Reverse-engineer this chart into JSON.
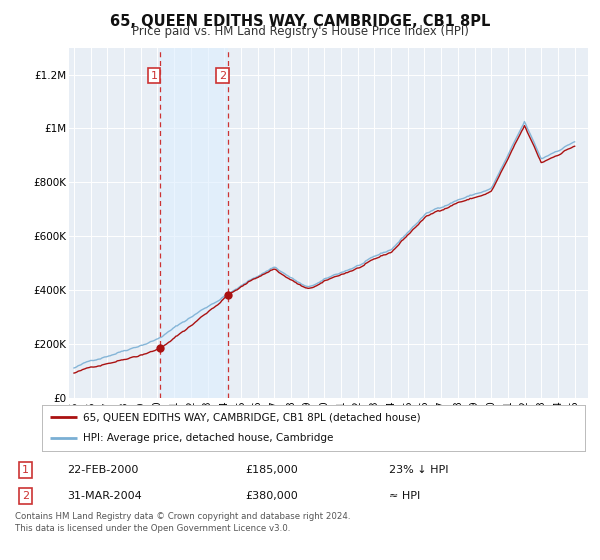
{
  "title": "65, QUEEN EDITHS WAY, CAMBRIDGE, CB1 8PL",
  "subtitle": "Price paid vs. HM Land Registry's House Price Index (HPI)",
  "title_fontsize": 10.5,
  "subtitle_fontsize": 8.5,
  "bg_color": "#ffffff",
  "plot_bg_color": "#e8eef5",
  "grid_color": "#ffffff",
  "hpi_color": "#7aafd4",
  "price_color": "#aa1111",
  "marker_color": "#aa1111",
  "vline_color": "#cc3333",
  "shade_color": "#ddeeff",
  "ylim": [
    0,
    1300000
  ],
  "yticks": [
    0,
    200000,
    400000,
    600000,
    800000,
    1000000,
    1200000
  ],
  "ytick_labels": [
    "£0",
    "£200K",
    "£400K",
    "£600K",
    "£800K",
    "£1M",
    "£1.2M"
  ],
  "sale1_date": 2000.14,
  "sale1_price": 185000,
  "sale1_label": "1",
  "sale2_date": 2004.25,
  "sale2_price": 380000,
  "sale2_label": "2",
  "legend_entry1": "65, QUEEN EDITHS WAY, CAMBRIDGE, CB1 8PL (detached house)",
  "legend_entry2": "HPI: Average price, detached house, Cambridge",
  "table_row1_num": "1",
  "table_row1_date": "22-FEB-2000",
  "table_row1_price": "£185,000",
  "table_row1_hpi": "23% ↓ HPI",
  "table_row2_num": "2",
  "table_row2_date": "31-MAR-2004",
  "table_row2_price": "£380,000",
  "table_row2_hpi": "≈ HPI",
  "footer": "Contains HM Land Registry data © Crown copyright and database right 2024.\nThis data is licensed under the Open Government Licence v3.0.",
  "xmin": 1994.7,
  "xmax": 2025.8,
  "xstart": 1995.0,
  "xend": 2025.0
}
